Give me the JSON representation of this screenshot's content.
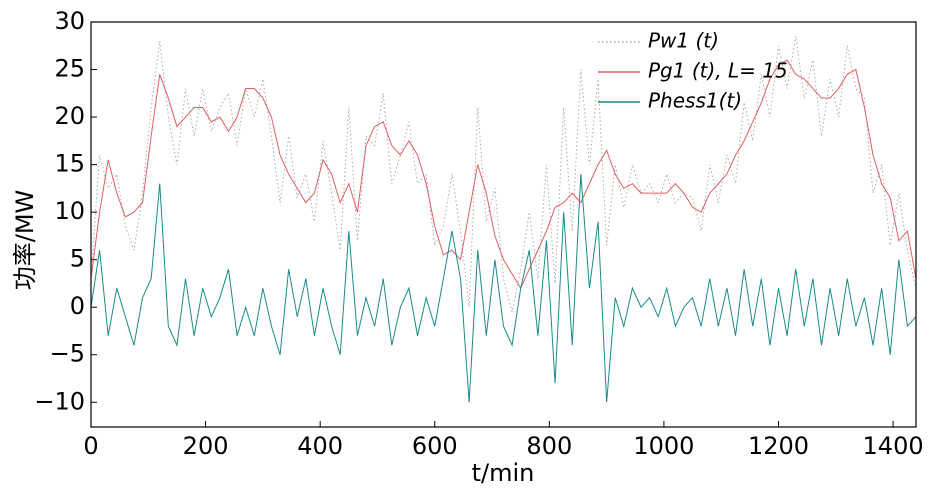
{
  "chart_data": {
    "type": "line",
    "x_label": "t/min",
    "y_label": "功率/MW",
    "x": [
      0,
      15,
      30,
      45,
      60,
      75,
      90,
      105,
      120,
      135,
      150,
      165,
      180,
      195,
      210,
      225,
      240,
      255,
      270,
      285,
      300,
      315,
      330,
      345,
      360,
      375,
      390,
      405,
      420,
      435,
      450,
      465,
      480,
      495,
      510,
      525,
      540,
      555,
      570,
      585,
      600,
      615,
      630,
      645,
      660,
      675,
      690,
      705,
      720,
      735,
      750,
      765,
      780,
      795,
      810,
      825,
      840,
      855,
      870,
      885,
      900,
      915,
      930,
      945,
      960,
      975,
      990,
      1005,
      1020,
      1035,
      1050,
      1065,
      1080,
      1095,
      1110,
      1125,
      1140,
      1155,
      1170,
      1185,
      1200,
      1215,
      1230,
      1245,
      1260,
      1275,
      1290,
      1305,
      1320,
      1335,
      1350,
      1365,
      1380,
      1395,
      1410,
      1425,
      1440
    ],
    "series": [
      {
        "name": "Pw1 (t)",
        "color": "#aaaaaa",
        "dash": "1.5,2.5",
        "values": [
          3,
          16,
          12.5,
          14,
          8.5,
          6,
          12,
          21,
          28,
          20,
          15,
          23,
          18,
          23,
          18.5,
          21,
          22.5,
          17,
          23,
          20,
          24,
          18,
          11,
          18,
          11.5,
          14,
          9,
          17.5,
          12,
          6,
          21,
          7,
          18,
          17,
          22.5,
          13,
          16,
          19.5,
          13,
          14,
          6.5,
          8.5,
          14,
          8,
          0,
          21,
          9,
          12.5,
          3,
          -0.5,
          4,
          10,
          3,
          15,
          2.5,
          21,
          8,
          25,
          15,
          24,
          6.5,
          15,
          10.5,
          15,
          12,
          13,
          11,
          14,
          11,
          12,
          11.5,
          8,
          15,
          11,
          16,
          13,
          21.5,
          17.5,
          24.5,
          20,
          27.5,
          23,
          28.5,
          22,
          26,
          18,
          24,
          20,
          27.5,
          23,
          22,
          12,
          15,
          6.5,
          12,
          6,
          2
        ]
      },
      {
        "name": "Pg1 (t), L= 15",
        "color": "#e06060",
        "dash": "",
        "values": [
          3,
          10,
          15.5,
          12,
          9.5,
          10,
          11,
          18,
          24.5,
          22,
          19,
          20,
          21,
          21,
          19.5,
          20,
          18.5,
          20,
          23,
          23,
          22,
          20,
          16,
          14,
          12.5,
          11,
          12,
          15.5,
          14,
          11,
          13,
          10,
          17,
          19,
          19.5,
          17,
          16,
          17.5,
          16,
          13,
          8.5,
          5.5,
          6,
          5,
          10,
          15,
          12,
          7.5,
          5,
          3.5,
          2,
          4,
          6,
          8,
          10.5,
          11,
          12,
          11,
          13,
          15,
          16.5,
          14,
          12.5,
          13,
          12,
          12,
          12,
          12,
          13,
          12,
          10.5,
          10,
          12,
          13,
          14,
          16,
          17.5,
          19.5,
          21.5,
          24,
          25.5,
          26,
          24.5,
          24,
          23,
          22,
          22,
          23,
          24.5,
          25,
          21,
          16,
          13,
          11.5,
          7,
          8,
          3
        ]
      },
      {
        "name": "Phess1(t)",
        "color": "#1a8a8a",
        "dash": "",
        "values": [
          0,
          6,
          -3,
          2,
          -1,
          -4,
          1,
          3,
          13,
          -2,
          -4,
          3,
          -3,
          2,
          -1,
          1,
          4,
          -3,
          0,
          -3,
          2,
          -2,
          -5,
          4,
          -1,
          3,
          -3,
          2,
          -2,
          -5,
          8,
          -3,
          1,
          -2,
          3,
          -4,
          0,
          2,
          -3,
          1,
          -2,
          3,
          8,
          3,
          -10,
          6,
          -3,
          5,
          -2,
          -4,
          2,
          6,
          -3,
          7,
          -8,
          10,
          -4,
          14,
          2,
          9,
          -10,
          1,
          -2,
          2,
          0,
          1,
          -1,
          2,
          -2,
          0,
          1,
          -2,
          3,
          -2,
          2,
          -3,
          4,
          -2,
          3,
          -4,
          2,
          -3,
          4,
          -2,
          3,
          -4,
          2,
          -3,
          3,
          -2,
          1,
          -4,
          2,
          -5,
          5,
          -2,
          -1
        ]
      }
    ],
    "xlim": [
      0,
      1440
    ],
    "xticks": [
      0,
      200,
      400,
      600,
      800,
      1000,
      1200,
      1400
    ],
    "ylim": [
      -12.6,
      30
    ],
    "yticks": [
      {
        "value": -10,
        "label": "−10"
      },
      {
        "value": -5,
        "label": "−5"
      },
      0,
      5,
      10,
      15,
      20,
      25,
      30
    ]
  }
}
